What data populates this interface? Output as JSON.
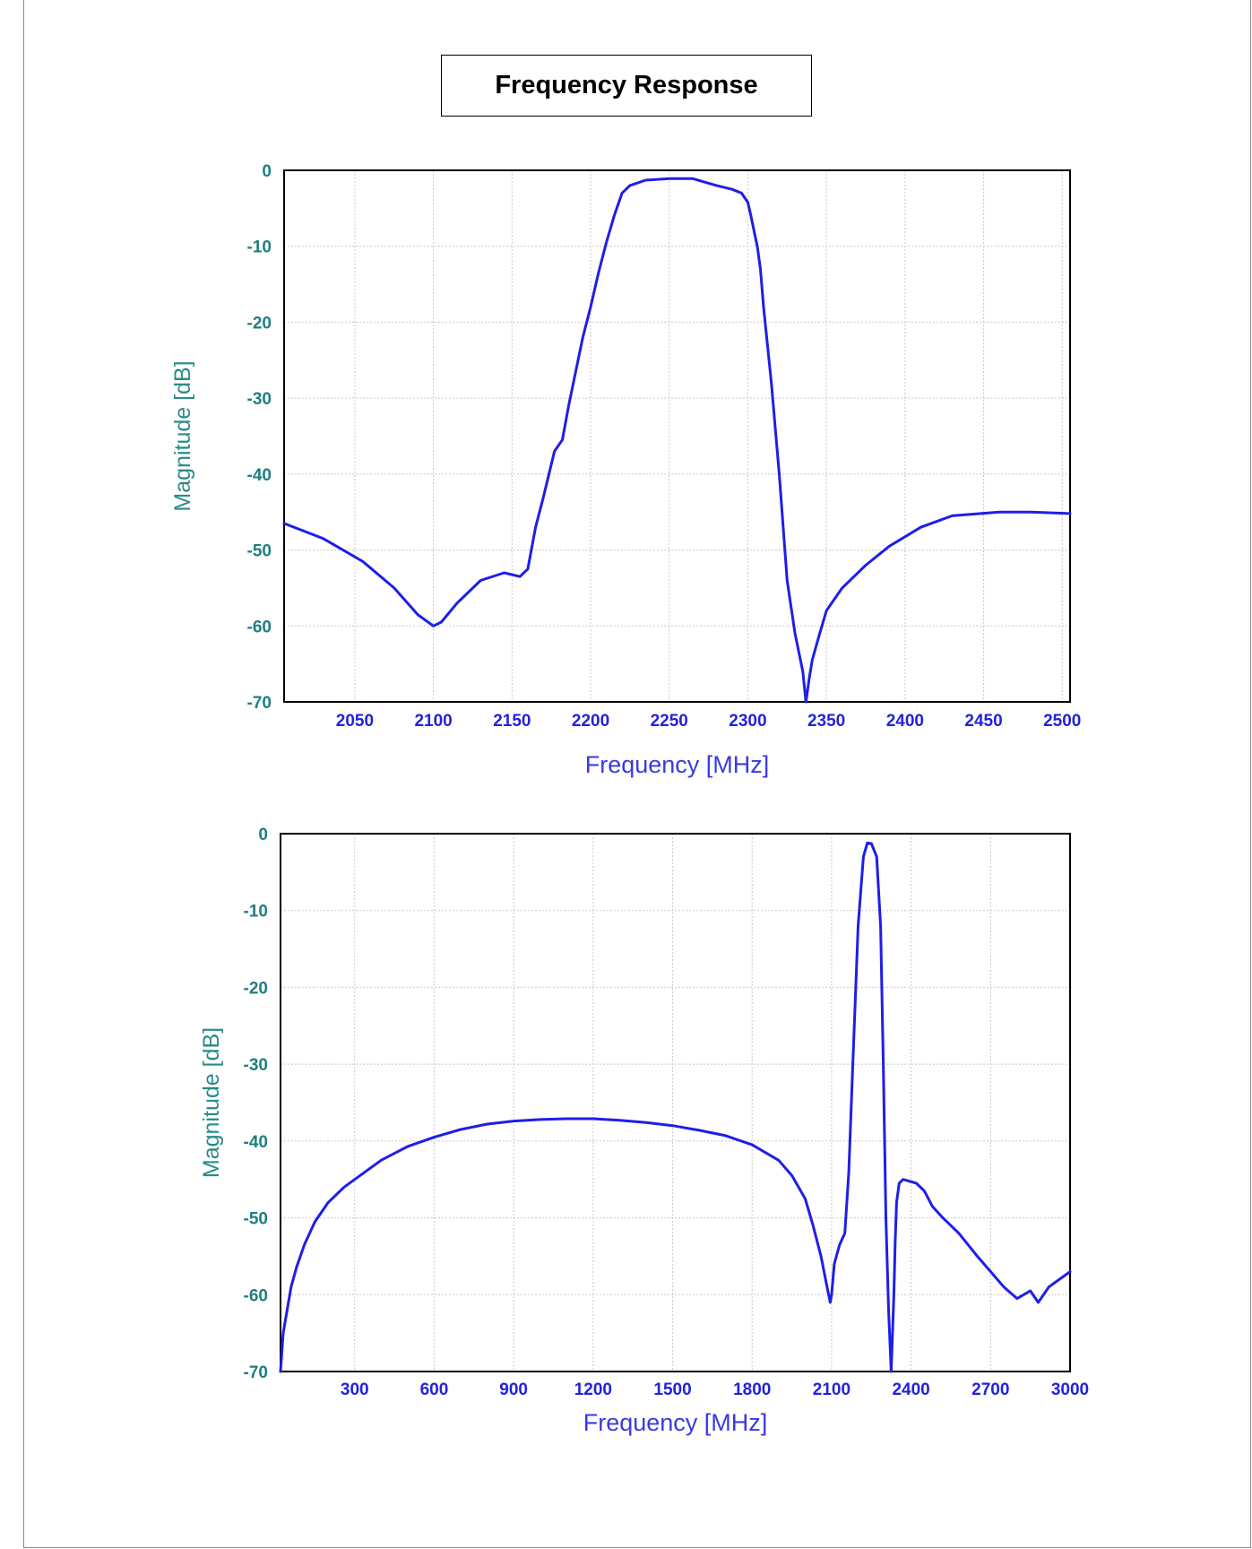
{
  "header": {
    "title": "Frequency Response"
  },
  "colors": {
    "trace": "#1e1ee8",
    "y_tick": "#1f7f7f",
    "x_tick": "#2222dd",
    "grid": "#c8c8c8"
  },
  "chart_data": [
    {
      "type": "line",
      "xlabel": "Frequency [MHz]",
      "ylabel": "Magnitude [dB]",
      "xlim": [
        2005,
        2505
      ],
      "ylim": [
        -70,
        0
      ],
      "x_ticks": [
        "2050",
        "2100",
        "2150",
        "2200",
        "2250",
        "2300",
        "2350",
        "2400",
        "2450",
        "2500"
      ],
      "y_ticks": [
        "0",
        "-10",
        "-20",
        "-30",
        "-40",
        "-50",
        "-60",
        "-70"
      ],
      "grid": true,
      "series": [
        {
          "x": [
            2005,
            2030,
            2055,
            2075,
            2090,
            2100,
            2105,
            2115,
            2130,
            2145,
            2155,
            2160,
            2165,
            2170,
            2177,
            2182,
            2186,
            2190,
            2195,
            2200,
            2205,
            2210,
            2215,
            2220,
            2225,
            2235,
            2250,
            2265,
            2280,
            2290,
            2296,
            2300,
            2302,
            2304,
            2306,
            2308,
            2310,
            2315,
            2320,
            2325,
            2330,
            2335,
            2337,
            2339,
            2341,
            2345,
            2350,
            2360,
            2375,
            2390,
            2410,
            2430,
            2460,
            2480,
            2505
          ],
          "y": [
            -46.5,
            -48.5,
            -51.5,
            -55,
            -58.5,
            -60,
            -59.5,
            -57,
            -54,
            -53,
            -53.5,
            -52.5,
            -47,
            -43,
            -37,
            -35.5,
            -31,
            -27,
            -22,
            -18,
            -13.5,
            -9.5,
            -6,
            -3,
            -2,
            -1.3,
            -1.1,
            -1.1,
            -2,
            -2.5,
            -3,
            -4.2,
            -6,
            -8,
            -10,
            -13,
            -18,
            -28,
            -40,
            -54,
            -61,
            -66,
            -70,
            -67,
            -64.5,
            -61.5,
            -58,
            -55,
            -52,
            -49.5,
            -47,
            -45.5,
            -45,
            -45,
            -45.2
          ]
        }
      ]
    },
    {
      "type": "line",
      "xlabel": "Frequency [MHz]",
      "ylabel": "Magnitude [dB]",
      "xlim": [
        20,
        3000
      ],
      "ylim": [
        -70,
        0
      ],
      "x_ticks": [
        "300",
        "600",
        "900",
        "1200",
        "1500",
        "1800",
        "2100",
        "2400",
        "2700",
        "3000"
      ],
      "y_ticks": [
        "0",
        "-10",
        "-20",
        "-30",
        "-40",
        "-50",
        "-60",
        "-70"
      ],
      "grid": true,
      "series": [
        {
          "x": [
            20,
            30,
            45,
            60,
            80,
            110,
            150,
            200,
            260,
            320,
            400,
            500,
            600,
            700,
            800,
            900,
            1000,
            1100,
            1200,
            1300,
            1400,
            1500,
            1600,
            1700,
            1800,
            1900,
            1950,
            2000,
            2030,
            2060,
            2080,
            2095,
            2100,
            2110,
            2130,
            2150,
            2165,
            2180,
            2200,
            2220,
            2235,
            2250,
            2270,
            2285,
            2295,
            2305,
            2315,
            2325,
            2335,
            2340,
            2345,
            2355,
            2370,
            2390,
            2420,
            2450,
            2480,
            2520,
            2580,
            2650,
            2750,
            2800,
            2850,
            2880,
            2920,
            2960,
            3000
          ],
          "y": [
            -70,
            -65,
            -62,
            -59,
            -56.5,
            -53.5,
            -50.5,
            -48,
            -46,
            -44.5,
            -42.5,
            -40.7,
            -39.5,
            -38.5,
            -37.8,
            -37.4,
            -37.2,
            -37.1,
            -37.1,
            -37.3,
            -37.6,
            -38,
            -38.6,
            -39.3,
            -40.5,
            -42.5,
            -44.5,
            -47.5,
            -51,
            -55,
            -58.5,
            -61,
            -60,
            -56,
            -53.5,
            -52,
            -44,
            -30,
            -12,
            -3,
            -1.2,
            -1.3,
            -3,
            -12,
            -30,
            -50,
            -62,
            -70,
            -60,
            -53,
            -48,
            -45.5,
            -45,
            -45.2,
            -45.5,
            -46.5,
            -48.5,
            -50,
            -52,
            -55,
            -59,
            -60.5,
            -59.5,
            -61,
            -59,
            -58,
            -57
          ]
        }
      ]
    }
  ]
}
